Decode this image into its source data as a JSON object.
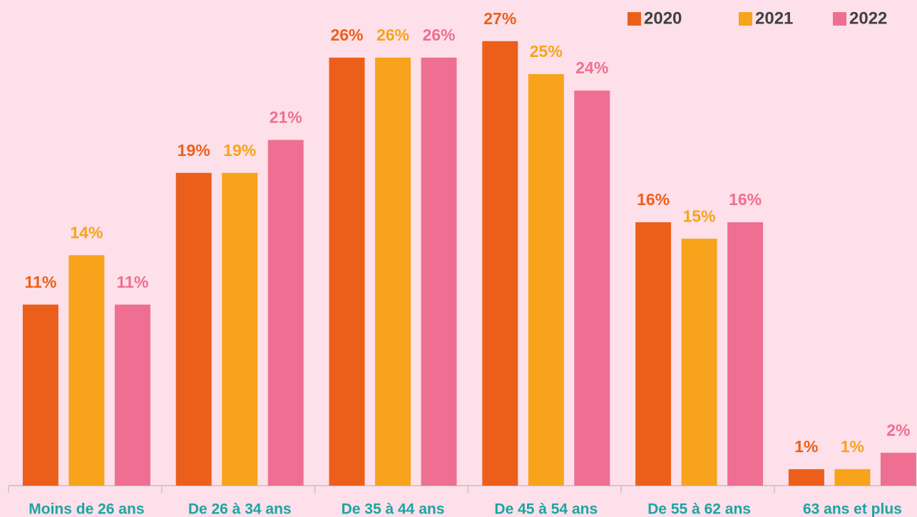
{
  "chart_data": {
    "type": "bar",
    "categories": [
      "Moins de 26 ans",
      "De 26 à 34 ans",
      "De 35 à 44 ans",
      "De 45 à 54 ans",
      "De 55 à 62 ans",
      "63 ans et plus"
    ],
    "series": [
      {
        "name": "2020",
        "color": "#ec5f1b",
        "values": [
          11,
          19,
          26,
          27,
          16,
          1
        ],
        "value_labels": [
          "11%",
          "19%",
          "26%",
          "27%",
          "16%",
          "1%"
        ]
      },
      {
        "name": "2021",
        "color": "#f7a31c",
        "values": [
          14,
          19,
          26,
          25,
          15,
          1
        ],
        "value_labels": [
          "14%",
          "19%",
          "26%",
          "25%",
          "15%",
          "1%"
        ]
      },
      {
        "name": "2022",
        "color": "#ee6f92",
        "values": [
          11,
          21,
          26,
          24,
          16,
          2
        ],
        "value_labels": [
          "11%",
          "21%",
          "26%",
          "24%",
          "16%",
          "2%"
        ]
      }
    ],
    "ylim": [
      0,
      29.5
    ],
    "legend": "top-right"
  }
}
